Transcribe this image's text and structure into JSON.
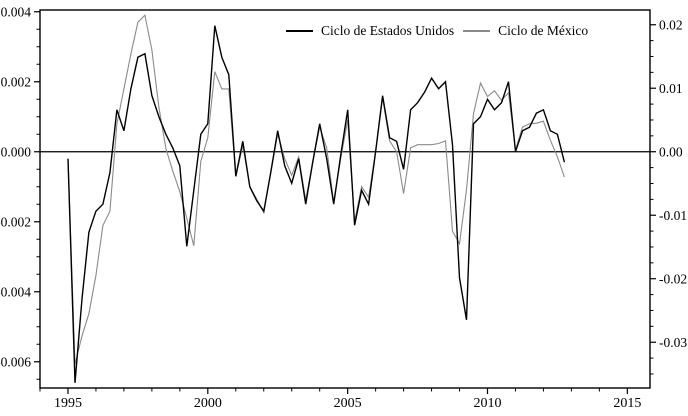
{
  "chart_data": {
    "type": "line",
    "title": "",
    "frequency": "quarterly",
    "x_start_year": 1995,
    "x_axis": {
      "major_ticks": [
        1995,
        2000,
        2005,
        2010,
        2015
      ],
      "minor_tick_step_years": 1,
      "range": [
        1994.0,
        2015.81
      ]
    },
    "left_axis": {
      "range": [
        -0.00675,
        0.00405
      ],
      "minor_tick_step": 0.0005,
      "ticks": [
        {
          "label": "0.004",
          "value": 0.004
        },
        {
          "label": "0.002",
          "value": 0.002
        },
        {
          "label": "0.000",
          "value": 0.0
        },
        {
          "label": "-0.002",
          "value": -0.002
        },
        {
          "label": "-0.004",
          "value": -0.004
        },
        {
          "label": "-0.006",
          "value": -0.006
        }
      ]
    },
    "right_axis": {
      "range": [
        -0.03721,
        0.02232
      ],
      "minor_tick_step": 0.0025,
      "ticks": [
        {
          "label": "0.02",
          "value": 0.02
        },
        {
          "label": "0.01",
          "value": 0.01
        },
        {
          "label": "0.00",
          "value": 0.0
        },
        {
          "label": "-0.01",
          "value": -0.01
        },
        {
          "label": "-0.02",
          "value": -0.02
        },
        {
          "label": "-0.03",
          "value": -0.03
        }
      ]
    },
    "zero_line": true,
    "series": [
      {
        "name": "Ciclo de Estados Unidos",
        "axis": "left",
        "color": "#000000",
        "values": [
          -0.0002,
          -0.0066,
          -0.0042,
          -0.0023,
          -0.0017,
          -0.0015,
          -0.0006,
          0.0012,
          0.0006,
          0.0018,
          0.0027,
          0.0028,
          0.0016,
          0.001,
          0.0005,
          0.0001,
          -0.0004,
          -0.0027,
          -0.0011,
          0.0005,
          0.0008,
          0.0036,
          0.0027,
          0.0022,
          -0.0007,
          0.0003,
          -0.001,
          -0.0014,
          -0.0017,
          -0.0006,
          0.0006,
          -0.0004,
          -0.0009,
          -0.0002,
          -0.0015,
          -0.0003,
          0.0008,
          -0.0002,
          -0.0015,
          -0.0001,
          0.0012,
          -0.0021,
          -0.0011,
          -0.0015,
          0.0,
          0.0016,
          0.0004,
          0.0003,
          -0.0005,
          0.0012,
          0.0014,
          0.0017,
          0.0021,
          0.0018,
          0.002,
          0.0002,
          -0.0036,
          -0.0048,
          0.0008,
          0.001,
          0.0015,
          0.0012,
          0.0014,
          0.002,
          0.0,
          0.0006,
          0.0007,
          0.0011,
          0.0012,
          0.0006,
          0.0005,
          -0.0003
        ]
      },
      {
        "name": "Ciclo de México",
        "axis": "right",
        "color": "#8a8a8a",
        "values": [
          -0.0011,
          -0.0335,
          -0.029,
          -0.0255,
          -0.0195,
          -0.0116,
          -0.0094,
          0.0044,
          0.0099,
          0.0154,
          0.0204,
          0.0215,
          0.016,
          0.007,
          0.0005,
          -0.0031,
          -0.0063,
          -0.0105,
          -0.0148,
          -0.0015,
          0.0022,
          0.0126,
          0.0099,
          0.0099,
          -0.0039,
          0.001,
          -0.0055,
          -0.0075,
          -0.0096,
          -0.0033,
          0.0028,
          -0.0011,
          -0.0037,
          -0.0008,
          -0.0076,
          -0.0017,
          0.0039,
          0.0006,
          -0.0079,
          -0.0011,
          0.005,
          -0.011,
          -0.0055,
          -0.0072,
          0.0,
          0.0085,
          0.0017,
          0.0,
          -0.0066,
          0.0006,
          0.0011,
          0.0011,
          0.0011,
          0.0013,
          0.0017,
          -0.0125,
          -0.0145,
          -0.006,
          0.006,
          0.0108,
          0.0087,
          0.0096,
          0.0081,
          0.0093,
          0.0003,
          0.0039,
          0.0044,
          0.0045,
          0.0048,
          0.0018,
          -0.0008,
          -0.004
        ]
      }
    ]
  },
  "legend": {
    "items": [
      {
        "label": "Ciclo de Estados Unidos",
        "color": "#000000"
      },
      {
        "label": "Ciclo de México",
        "color": "#8a8a8a"
      }
    ]
  }
}
